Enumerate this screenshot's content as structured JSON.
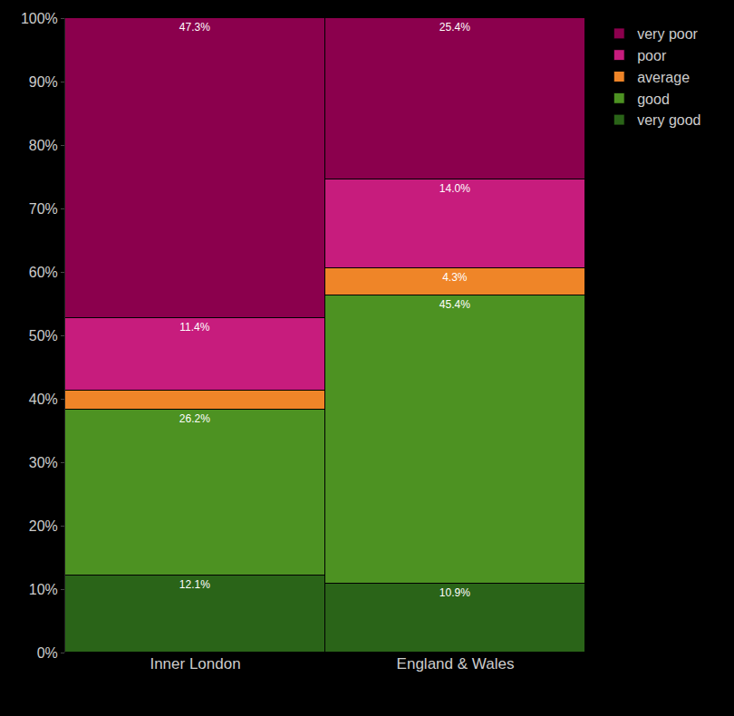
{
  "chart_data": {
    "type": "bar",
    "stacked": true,
    "categories": [
      "Inner London",
      "England & Wales"
    ],
    "series": [
      {
        "name": "very good",
        "color": "#2a6418",
        "values": [
          12.1,
          10.9
        ],
        "value_labels": [
          "12.1%",
          "10.9%"
        ]
      },
      {
        "name": "good",
        "color": "#4d9222",
        "values": [
          26.2,
          45.4
        ],
        "value_labels": [
          "26.2%",
          "45.4%"
        ]
      },
      {
        "name": "average",
        "color": "#ef8528",
        "values": [
          3.0,
          4.3
        ],
        "value_labels": [
          null,
          "4.3%"
        ]
      },
      {
        "name": "poor",
        "color": "#c71c7d",
        "values": [
          11.4,
          14.0
        ],
        "value_labels": [
          "11.4%",
          "14.0%"
        ]
      },
      {
        "name": "very poor",
        "color": "#8b004d",
        "values": [
          47.3,
          25.4
        ],
        "value_labels": [
          "47.3%",
          "25.4%"
        ]
      }
    ],
    "ylim": [
      0,
      100
    ],
    "yticks": [
      {
        "value": 0,
        "label": "0%"
      },
      {
        "value": 10,
        "label": "10%"
      },
      {
        "value": 20,
        "label": "20%"
      },
      {
        "value": 30,
        "label": "30%"
      },
      {
        "value": 40,
        "label": "40%"
      },
      {
        "value": 50,
        "label": "50%"
      },
      {
        "value": 60,
        "label": "60%"
      },
      {
        "value": 70,
        "label": "70%"
      },
      {
        "value": 80,
        "label": "80%"
      },
      {
        "value": 90,
        "label": "90%"
      },
      {
        "value": 100,
        "label": "100%"
      }
    ],
    "grid": false,
    "legend": "top right",
    "data_labels": true
  }
}
